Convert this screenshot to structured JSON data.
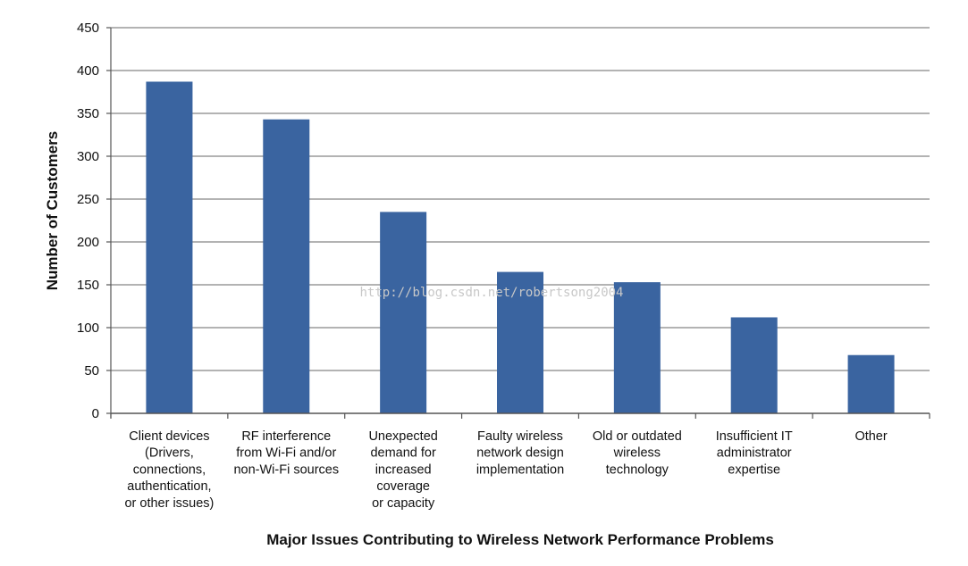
{
  "chart_data": {
    "type": "bar",
    "categories": [
      [
        "Client devices",
        "(Drivers,",
        "connections,",
        "authentication,",
        "or other issues)"
      ],
      [
        "RF interference",
        "from Wi-Fi and/or",
        "non-Wi-Fi sources"
      ],
      [
        "Unexpected",
        "demand for",
        "increased",
        "coverage",
        "or capacity"
      ],
      [
        "Faulty wireless",
        "network design",
        "implementation"
      ],
      [
        "Old or outdated",
        "wireless",
        "technology"
      ],
      [
        "Insufficient IT",
        "administrator",
        "expertise"
      ],
      [
        "Other"
      ]
    ],
    "values": [
      387,
      343,
      235,
      165,
      153,
      112,
      68
    ],
    "xlabel": "Major Issues Contributing to Wireless Network Performance Problems",
    "ylabel": "Number of Customers",
    "ylim": [
      0,
      450
    ],
    "yticks": [
      0,
      50,
      100,
      150,
      200,
      250,
      300,
      350,
      400,
      450
    ],
    "grid": true,
    "bar_color": "#3a64a0",
    "grid_color": "#9a9a9a",
    "watermark": "http://blog.csdn.net/robertsong2004"
  }
}
